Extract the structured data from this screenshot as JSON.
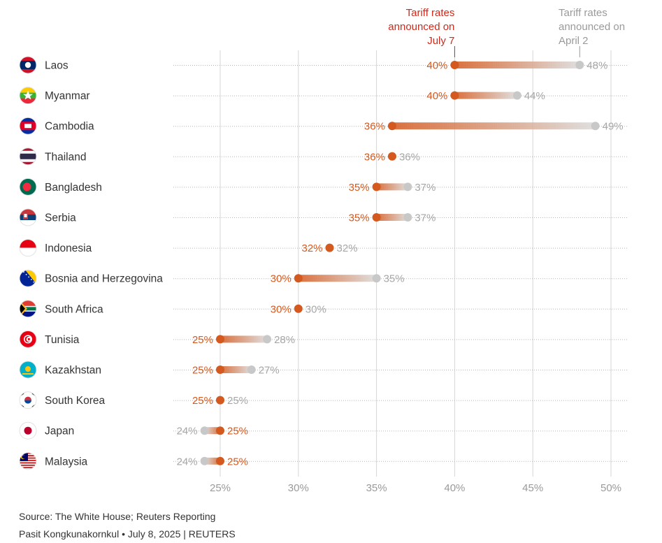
{
  "chart_data": {
    "type": "dumbbell",
    "title": "",
    "legend": {
      "new_label": [
        "Tariff rates",
        "announced on",
        "July 7"
      ],
      "old_label": [
        "Tariff rates",
        "announced on",
        "April 2"
      ]
    },
    "x_ticks": [
      25,
      30,
      35,
      40,
      45,
      50
    ],
    "x_tick_labels": [
      "25%",
      "30%",
      "35%",
      "40%",
      "45%",
      "50%"
    ],
    "xlim": [
      22,
      51
    ],
    "colors": {
      "new": "#d4591e",
      "old": "#c8c8c8",
      "header_new": "#cc2b1d"
    },
    "series": [
      {
        "country": "Laos",
        "flag": "laos-flag",
        "july7": 40,
        "april2": 48,
        "july7_label": "40%",
        "april2_label": "48%"
      },
      {
        "country": "Myanmar",
        "flag": "myanmar-flag",
        "july7": 40,
        "april2": 44,
        "july7_label": "40%",
        "april2_label": "44%"
      },
      {
        "country": "Cambodia",
        "flag": "cambodia-flag",
        "july7": 36,
        "april2": 49,
        "july7_label": "36%",
        "april2_label": "49%"
      },
      {
        "country": "Thailand",
        "flag": "thailand-flag",
        "july7": 36,
        "april2": 36,
        "july7_label": "36%",
        "april2_label": "36%"
      },
      {
        "country": "Bangladesh",
        "flag": "bangladesh-flag",
        "july7": 35,
        "april2": 37,
        "july7_label": "35%",
        "april2_label": "37%"
      },
      {
        "country": "Serbia",
        "flag": "serbia-flag",
        "july7": 35,
        "april2": 37,
        "july7_label": "35%",
        "april2_label": "37%"
      },
      {
        "country": "Indonesia",
        "flag": "indonesia-flag",
        "july7": 32,
        "april2": 32,
        "july7_label": "32%",
        "april2_label": "32%"
      },
      {
        "country": "Bosnia and Herzegovina",
        "flag": "bosnia-flag",
        "july7": 30,
        "april2": 35,
        "july7_label": "30%",
        "april2_label": "35%"
      },
      {
        "country": "South Africa",
        "flag": "south-africa-flag",
        "july7": 30,
        "april2": 30,
        "july7_label": "30%",
        "april2_label": "30%"
      },
      {
        "country": "Tunisia",
        "flag": "tunisia-flag",
        "july7": 25,
        "april2": 28,
        "july7_label": "25%",
        "april2_label": "28%"
      },
      {
        "country": "Kazakhstan",
        "flag": "kazakhstan-flag",
        "july7": 25,
        "april2": 27,
        "july7_label": "25%",
        "april2_label": "27%"
      },
      {
        "country": "South Korea",
        "flag": "south-korea-flag",
        "july7": 25,
        "april2": 25,
        "july7_label": "25%",
        "april2_label": "25%"
      },
      {
        "country": "Japan",
        "flag": "japan-flag",
        "july7": 25,
        "april2": 24,
        "july7_label": "25%",
        "april2_label": "24%"
      },
      {
        "country": "Malaysia",
        "flag": "malaysia-flag",
        "july7": 25,
        "april2": 24,
        "july7_label": "25%",
        "april2_label": "24%"
      }
    ]
  },
  "footer": {
    "source": "Source: The White House; Reuters Reporting",
    "credit": "Pasit Kongkunakornkul • July 8, 2025 | REUTERS"
  }
}
